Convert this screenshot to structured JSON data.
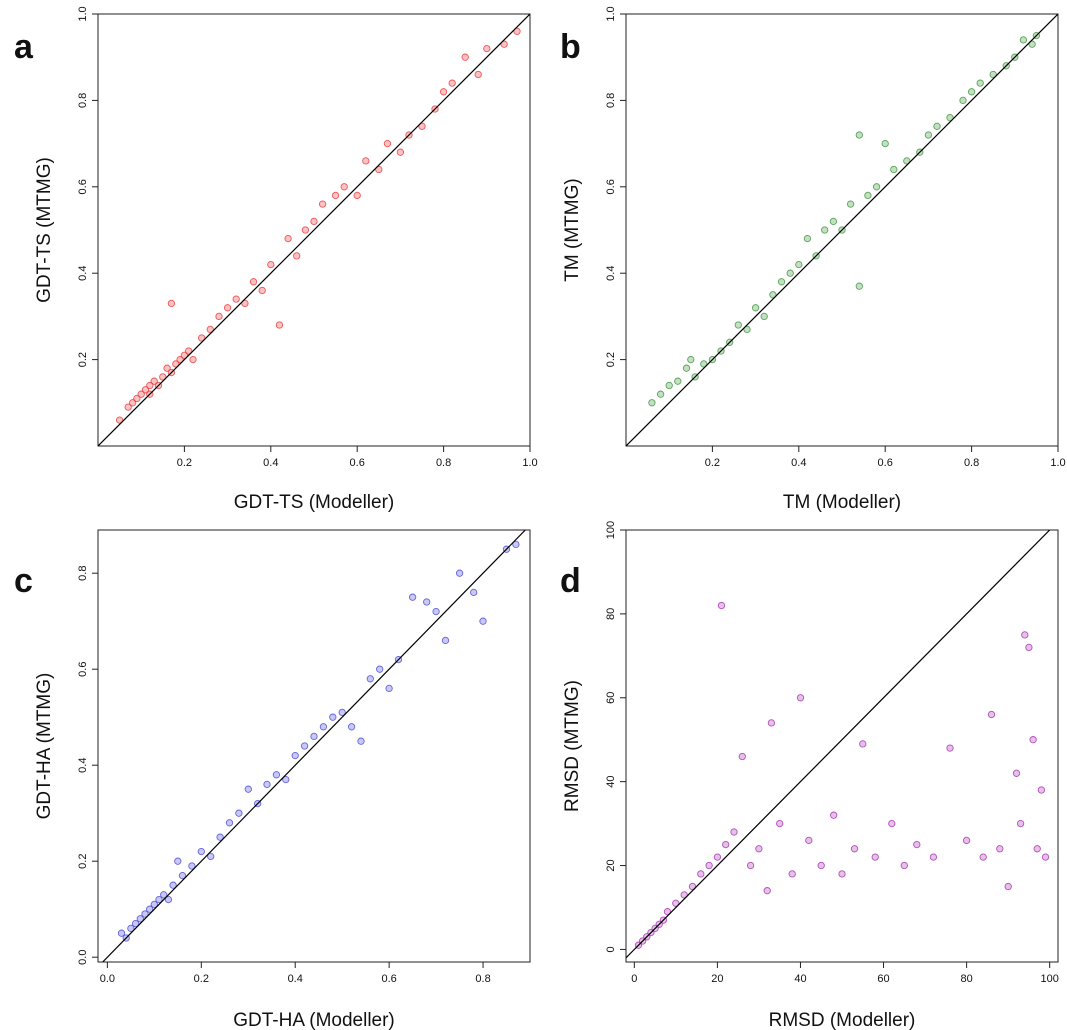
{
  "chart_data": [
    {
      "panel": "a",
      "type": "scatter",
      "xlabel": "GDT-TS (Modeller)",
      "ylabel": "GDT-TS (MTMG)",
      "xlim": [
        0.0,
        1.0
      ],
      "ylim": [
        0.0,
        1.0
      ],
      "xticks": [
        0.2,
        0.4,
        0.6,
        0.8,
        1.0
      ],
      "yticks": [
        0.2,
        0.4,
        0.6,
        0.8,
        1.0
      ],
      "xtick_labels": [
        "0.2",
        "0.4",
        "0.6",
        "0.8",
        "1.0"
      ],
      "ytick_labels": [
        "0.2",
        "0.4",
        "0.6",
        "0.8",
        "1.0"
      ],
      "point_color": "#e8282b",
      "reference_line": "y = x",
      "points": [
        [
          0.05,
          0.06
        ],
        [
          0.07,
          0.09
        ],
        [
          0.08,
          0.1
        ],
        [
          0.09,
          0.11
        ],
        [
          0.1,
          0.12
        ],
        [
          0.11,
          0.13
        ],
        [
          0.12,
          0.12
        ],
        [
          0.12,
          0.14
        ],
        [
          0.13,
          0.15
        ],
        [
          0.14,
          0.14
        ],
        [
          0.15,
          0.16
        ],
        [
          0.16,
          0.18
        ],
        [
          0.17,
          0.17
        ],
        [
          0.18,
          0.19
        ],
        [
          0.19,
          0.2
        ],
        [
          0.2,
          0.21
        ],
        [
          0.21,
          0.22
        ],
        [
          0.22,
          0.2
        ],
        [
          0.17,
          0.33
        ],
        [
          0.24,
          0.25
        ],
        [
          0.26,
          0.27
        ],
        [
          0.28,
          0.3
        ],
        [
          0.3,
          0.32
        ],
        [
          0.32,
          0.34
        ],
        [
          0.34,
          0.33
        ],
        [
          0.36,
          0.38
        ],
        [
          0.38,
          0.36
        ],
        [
          0.4,
          0.42
        ],
        [
          0.42,
          0.28
        ],
        [
          0.44,
          0.48
        ],
        [
          0.46,
          0.44
        ],
        [
          0.48,
          0.5
        ],
        [
          0.5,
          0.52
        ],
        [
          0.52,
          0.56
        ],
        [
          0.55,
          0.58
        ],
        [
          0.57,
          0.6
        ],
        [
          0.6,
          0.58
        ],
        [
          0.62,
          0.66
        ],
        [
          0.65,
          0.64
        ],
        [
          0.67,
          0.7
        ],
        [
          0.7,
          0.68
        ],
        [
          0.72,
          0.72
        ],
        [
          0.75,
          0.74
        ],
        [
          0.78,
          0.78
        ],
        [
          0.8,
          0.82
        ],
        [
          0.82,
          0.84
        ],
        [
          0.85,
          0.9
        ],
        [
          0.88,
          0.86
        ],
        [
          0.9,
          0.92
        ],
        [
          0.94,
          0.93
        ],
        [
          0.97,
          0.96
        ]
      ]
    },
    {
      "panel": "b",
      "type": "scatter",
      "xlabel": "TM (Modeller)",
      "ylabel": "TM (MTMG)",
      "xlim": [
        0.0,
        1.0
      ],
      "ylim": [
        0.0,
        1.0
      ],
      "xticks": [
        0.2,
        0.4,
        0.6,
        0.8,
        1.0
      ],
      "yticks": [
        0.2,
        0.4,
        0.6,
        0.8,
        1.0
      ],
      "xtick_labels": [
        "0.2",
        "0.4",
        "0.6",
        "0.8",
        "1.0"
      ],
      "ytick_labels": [
        "0.2",
        "0.4",
        "0.6",
        "0.8",
        "1.0"
      ],
      "point_color": "#2e8b2e",
      "reference_line": "y = x",
      "points": [
        [
          0.06,
          0.1
        ],
        [
          0.08,
          0.12
        ],
        [
          0.1,
          0.14
        ],
        [
          0.12,
          0.15
        ],
        [
          0.14,
          0.18
        ],
        [
          0.15,
          0.2
        ],
        [
          0.16,
          0.16
        ],
        [
          0.18,
          0.19
        ],
        [
          0.2,
          0.2
        ],
        [
          0.22,
          0.22
        ],
        [
          0.24,
          0.24
        ],
        [
          0.26,
          0.28
        ],
        [
          0.28,
          0.27
        ],
        [
          0.3,
          0.32
        ],
        [
          0.32,
          0.3
        ],
        [
          0.34,
          0.35
        ],
        [
          0.36,
          0.38
        ],
        [
          0.38,
          0.4
        ],
        [
          0.4,
          0.42
        ],
        [
          0.42,
          0.48
        ],
        [
          0.44,
          0.44
        ],
        [
          0.46,
          0.5
        ],
        [
          0.48,
          0.52
        ],
        [
          0.5,
          0.5
        ],
        [
          0.52,
          0.56
        ],
        [
          0.54,
          0.72
        ],
        [
          0.54,
          0.37
        ],
        [
          0.56,
          0.58
        ],
        [
          0.58,
          0.6
        ],
        [
          0.6,
          0.7
        ],
        [
          0.62,
          0.64
        ],
        [
          0.65,
          0.66
        ],
        [
          0.68,
          0.68
        ],
        [
          0.7,
          0.72
        ],
        [
          0.72,
          0.74
        ],
        [
          0.75,
          0.76
        ],
        [
          0.78,
          0.8
        ],
        [
          0.8,
          0.82
        ],
        [
          0.82,
          0.84
        ],
        [
          0.85,
          0.86
        ],
        [
          0.88,
          0.88
        ],
        [
          0.9,
          0.9
        ],
        [
          0.92,
          0.94
        ],
        [
          0.94,
          0.93
        ],
        [
          0.95,
          0.95
        ]
      ]
    },
    {
      "panel": "c",
      "type": "scatter",
      "xlabel": "GDT-HA (Modeller)",
      "ylabel": "GDT-HA (MTMG)",
      "xlim": [
        -0.02,
        0.9
      ],
      "ylim": [
        -0.01,
        0.89
      ],
      "xticks": [
        0.0,
        0.2,
        0.4,
        0.6,
        0.8
      ],
      "yticks": [
        0.0,
        0.2,
        0.4,
        0.6,
        0.8
      ],
      "xtick_labels": [
        "0.0",
        "0.2",
        "0.4",
        "0.6",
        "0.8"
      ],
      "ytick_labels": [
        "0.0",
        "0.2",
        "0.4",
        "0.6",
        "0.8"
      ],
      "point_color": "#3b3bd6",
      "reference_line": "y = x",
      "points": [
        [
          0.03,
          0.05
        ],
        [
          0.04,
          0.04
        ],
        [
          0.05,
          0.06
        ],
        [
          0.06,
          0.07
        ],
        [
          0.07,
          0.08
        ],
        [
          0.08,
          0.09
        ],
        [
          0.09,
          0.1
        ],
        [
          0.1,
          0.11
        ],
        [
          0.11,
          0.12
        ],
        [
          0.12,
          0.13
        ],
        [
          0.13,
          0.12
        ],
        [
          0.14,
          0.15
        ],
        [
          0.15,
          0.2
        ],
        [
          0.16,
          0.17
        ],
        [
          0.18,
          0.19
        ],
        [
          0.2,
          0.22
        ],
        [
          0.22,
          0.21
        ],
        [
          0.24,
          0.25
        ],
        [
          0.26,
          0.28
        ],
        [
          0.28,
          0.3
        ],
        [
          0.3,
          0.35
        ],
        [
          0.32,
          0.32
        ],
        [
          0.34,
          0.36
        ],
        [
          0.36,
          0.38
        ],
        [
          0.38,
          0.37
        ],
        [
          0.4,
          0.42
        ],
        [
          0.42,
          0.44
        ],
        [
          0.44,
          0.46
        ],
        [
          0.46,
          0.48
        ],
        [
          0.48,
          0.5
        ],
        [
          0.5,
          0.51
        ],
        [
          0.52,
          0.48
        ],
        [
          0.54,
          0.45
        ],
        [
          0.56,
          0.58
        ],
        [
          0.58,
          0.6
        ],
        [
          0.6,
          0.56
        ],
        [
          0.62,
          0.62
        ],
        [
          0.65,
          0.75
        ],
        [
          0.68,
          0.74
        ],
        [
          0.7,
          0.72
        ],
        [
          0.72,
          0.66
        ],
        [
          0.75,
          0.8
        ],
        [
          0.78,
          0.76
        ],
        [
          0.8,
          0.7
        ],
        [
          0.85,
          0.85
        ],
        [
          0.87,
          0.86
        ]
      ]
    },
    {
      "panel": "d",
      "type": "scatter",
      "xlabel": "RMSD (Modeller)",
      "ylabel": "RMSD (MTMG)",
      "xlim": [
        -2,
        102
      ],
      "ylim": [
        -3,
        100
      ],
      "xticks": [
        0,
        20,
        40,
        60,
        80,
        100
      ],
      "yticks": [
        0,
        20,
        40,
        60,
        80,
        100
      ],
      "xtick_labels": [
        "0",
        "20",
        "40",
        "60",
        "80",
        "100"
      ],
      "ytick_labels": [
        "0",
        "20",
        "40",
        "60",
        "80",
        "100"
      ],
      "point_color": "#a020a8",
      "reference_line": "y = x",
      "points": [
        [
          1,
          1
        ],
        [
          2,
          2
        ],
        [
          3,
          3
        ],
        [
          4,
          4
        ],
        [
          5,
          5
        ],
        [
          6,
          6
        ],
        [
          7,
          7
        ],
        [
          8,
          9
        ],
        [
          10,
          11
        ],
        [
          12,
          13
        ],
        [
          14,
          15
        ],
        [
          16,
          18
        ],
        [
          18,
          20
        ],
        [
          20,
          22
        ],
        [
          21,
          82
        ],
        [
          22,
          25
        ],
        [
          24,
          28
        ],
        [
          26,
          46
        ],
        [
          28,
          20
        ],
        [
          30,
          24
        ],
        [
          32,
          14
        ],
        [
          33,
          54
        ],
        [
          35,
          30
        ],
        [
          38,
          18
        ],
        [
          40,
          60
        ],
        [
          42,
          26
        ],
        [
          45,
          20
        ],
        [
          48,
          32
        ],
        [
          50,
          18
        ],
        [
          53,
          24
        ],
        [
          55,
          49
        ],
        [
          58,
          22
        ],
        [
          62,
          30
        ],
        [
          65,
          20
        ],
        [
          68,
          25
        ],
        [
          72,
          22
        ],
        [
          76,
          48
        ],
        [
          80,
          26
        ],
        [
          84,
          22
        ],
        [
          86,
          56
        ],
        [
          88,
          24
        ],
        [
          90,
          15
        ],
        [
          92,
          42
        ],
        [
          93,
          30
        ],
        [
          94,
          75
        ],
        [
          95,
          72
        ],
        [
          96,
          50
        ],
        [
          97,
          24
        ],
        [
          98,
          38
        ],
        [
          99,
          22
        ]
      ]
    }
  ]
}
